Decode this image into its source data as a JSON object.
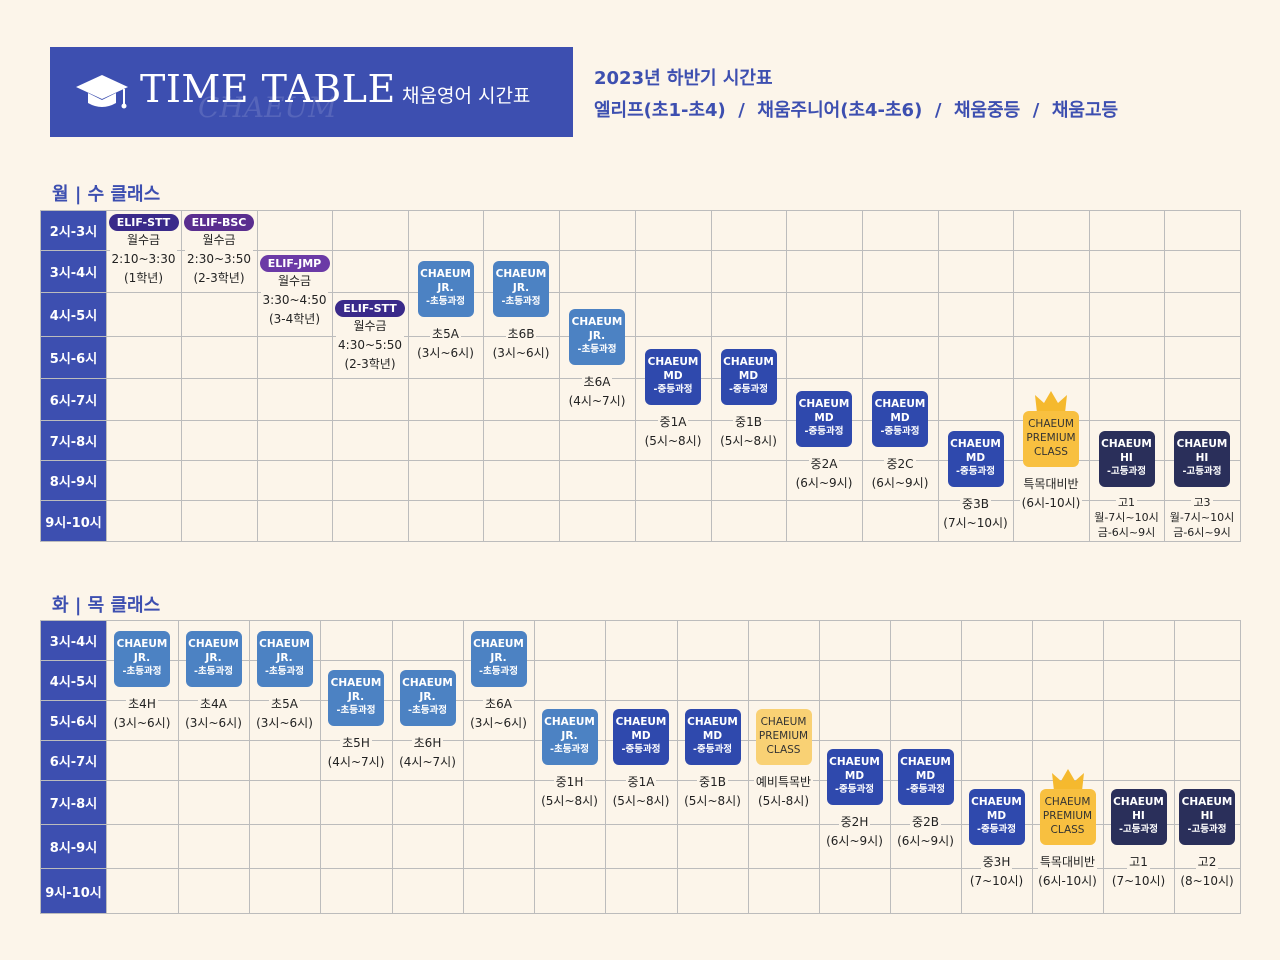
{
  "header": {
    "title": "TIME TABLE",
    "watermark": "CHAEUM",
    "subtitle": "채움영어 시간표",
    "semester": "2023년 하반기 시간표",
    "courses": "엘리프(초1-초4)  /  채움주니어(초4-초6)  /  채움중등  /  채움고등"
  },
  "mw": {
    "title": "월 | 수 클래스",
    "times": [
      "2시-3시",
      "3시-4시",
      "4시-5시",
      "5시-6시",
      "6시-7시",
      "7시-8시",
      "8시-9시",
      "9시-10시"
    ],
    "classes": [
      {
        "pill": "ELIF-STT",
        "lines": [
          "월수금",
          "2:10~3:30",
          "(1학년)"
        ]
      },
      {
        "pill": "ELIF-BSC",
        "lines": [
          "월수금",
          "2:30~3:50",
          "(2-3학년)"
        ]
      },
      {
        "pill": "ELIF-JMP",
        "lines": [
          "월수금",
          "3:30~4:50",
          "(3-4학년)"
        ]
      },
      {
        "pill": "ELIF-STT",
        "lines": [
          "월수금",
          "4:30~5:50",
          "(2-3학년)"
        ]
      },
      {
        "badge": [
          "CHAEUM",
          "JR.",
          "-초등과정"
        ],
        "lines": [
          "초5A",
          "(3시~6시)"
        ]
      },
      {
        "badge": [
          "CHAEUM",
          "JR.",
          "-초등과정"
        ],
        "lines": [
          "초6B",
          "(3시~6시)"
        ]
      },
      {
        "badge": [
          "CHAEUM",
          "JR.",
          "-초등과정"
        ],
        "lines": [
          "초6A",
          "(4시~7시)"
        ]
      },
      {
        "badge": [
          "CHAEUM",
          "MD",
          "-중등과정"
        ],
        "lines": [
          "중1A",
          "(5시~8시)"
        ]
      },
      {
        "badge": [
          "CHAEUM",
          "MD",
          "-중등과정"
        ],
        "lines": [
          "중1B",
          "(5시~8시)"
        ]
      },
      {
        "badge": [
          "CHAEUM",
          "MD",
          "-중등과정"
        ],
        "lines": [
          "중2A",
          "(6시~9시)"
        ]
      },
      {
        "badge": [
          "CHAEUM",
          "MD",
          "-중등과정"
        ],
        "lines": [
          "중2C",
          "(6시~9시)"
        ]
      },
      {
        "badge": [
          "CHAEUM",
          "MD",
          "-중등과정"
        ],
        "lines": [
          "중3B",
          "(7시~10시)"
        ]
      },
      {
        "badge": [
          "CHAEUM",
          "PREMIUM",
          "CLASS"
        ],
        "lines": [
          "특목대비반",
          "(6시-10시)"
        ]
      },
      {
        "badge": [
          "CHAEUM",
          "HI",
          "-고등과정"
        ],
        "lines": [
          "고1",
          "월-7시~10시",
          "금-6시~9시"
        ]
      },
      {
        "badge": [
          "CHAEUM",
          "HI",
          "-고등과정"
        ],
        "lines": [
          "고3",
          "월-7시~10시",
          "금-6시~9시"
        ]
      }
    ]
  },
  "tt": {
    "title": "화 | 목 클래스",
    "times": [
      "3시-4시",
      "4시-5시",
      "5시-6시",
      "6시-7시",
      "7시-8시",
      "8시-9시",
      "9시-10시"
    ],
    "classes": [
      {
        "badge": [
          "CHAEUM",
          "JR.",
          "-초등과정"
        ],
        "lines": [
          "초4H",
          "(3시~6시)"
        ]
      },
      {
        "badge": [
          "CHAEUM",
          "JR.",
          "-초등과정"
        ],
        "lines": [
          "초4A",
          "(3시~6시)"
        ]
      },
      {
        "badge": [
          "CHAEUM",
          "JR.",
          "-초등과정"
        ],
        "lines": [
          "초5A",
          "(3시~6시)"
        ]
      },
      {
        "badge": [
          "CHAEUM",
          "JR.",
          "-초등과정"
        ],
        "lines": [
          "초5H",
          "(4시~7시)"
        ]
      },
      {
        "badge": [
          "CHAEUM",
          "JR.",
          "-초등과정"
        ],
        "lines": [
          "초6H",
          "(4시~7시)"
        ]
      },
      {
        "badge": [
          "CHAEUM",
          "JR.",
          "-초등과정"
        ],
        "lines": [
          "초6A",
          "(3시~6시)"
        ]
      },
      {
        "badge": [
          "CHAEUM",
          "JR.",
          "-초등과정"
        ],
        "lines": [
          "중1H",
          "(5시~8시)"
        ]
      },
      {
        "badge": [
          "CHAEUM",
          "MD",
          "-중등과정"
        ],
        "lines": [
          "중1A",
          "(5시~8시)"
        ]
      },
      {
        "badge": [
          "CHAEUM",
          "MD",
          "-중등과정"
        ],
        "lines": [
          "중1B",
          "(5시~8시)"
        ]
      },
      {
        "badge": [
          "CHAEUM",
          "PREMIUM",
          "CLASS"
        ],
        "lines": [
          "예비특목반",
          "(5시-8시)"
        ]
      },
      {
        "badge": [
          "CHAEUM",
          "MD",
          "-중등과정"
        ],
        "lines": [
          "중2H",
          "(6시~9시)"
        ]
      },
      {
        "badge": [
          "CHAEUM",
          "MD",
          "-중등과정"
        ],
        "lines": [
          "중2B",
          "(6시~9시)"
        ]
      },
      {
        "badge": [
          "CHAEUM",
          "MD",
          "-중등과정"
        ],
        "lines": [
          "중3H",
          "(7~10시)"
        ]
      },
      {
        "badge": [
          "CHAEUM",
          "PREMIUM",
          "CLASS"
        ],
        "lines": [
          "특목대비반",
          "(6시-10시)"
        ]
      },
      {
        "badge": [
          "CHAEUM",
          "HI",
          "-고등과정"
        ],
        "lines": [
          "고1",
          "(7~10시)"
        ]
      },
      {
        "badge": [
          "CHAEUM",
          "HI",
          "-고등과정"
        ],
        "lines": [
          "고2",
          "(8~10시)"
        ]
      }
    ]
  }
}
